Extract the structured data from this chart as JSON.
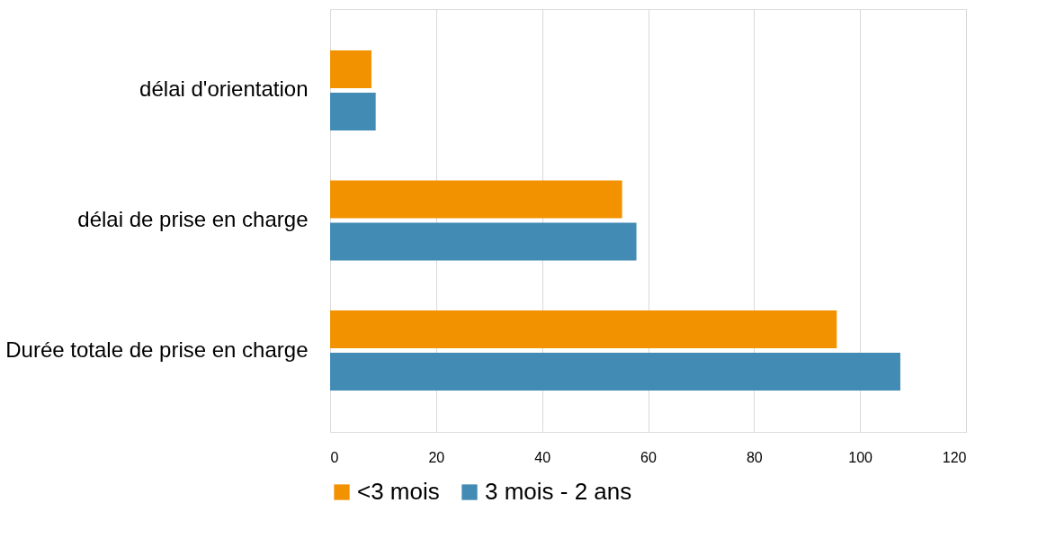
{
  "chart_data": {
    "type": "bar",
    "orientation": "horizontal",
    "categories": [
      "délai d'orientation",
      "délai de prise en charge",
      "Durée totale de prise en charge"
    ],
    "series": [
      {
        "name": "<3 mois",
        "color": "#f39200",
        "values": [
          7.8,
          55.1,
          95.6
        ]
      },
      {
        "name": "3 mois - 2 ans",
        "color": "#428bb5",
        "values": [
          8.6,
          57.8,
          107.6
        ]
      }
    ],
    "xlim": [
      0,
      120
    ],
    "xticks": [
      0,
      20,
      40,
      60,
      80,
      100,
      120
    ],
    "grid": "x",
    "legend": "bottom"
  }
}
